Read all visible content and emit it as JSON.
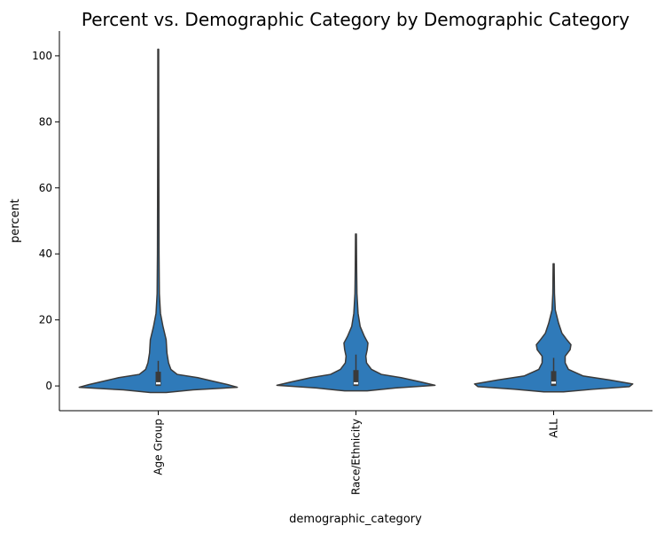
{
  "chart_data": {
    "type": "violin",
    "title": "Percent vs. Demographic Category by Demographic Category",
    "xlabel": "demographic_category",
    "ylabel": "percent",
    "ylim": [
      -7.5,
      107.5
    ],
    "yticks": [
      0,
      20,
      40,
      60,
      80,
      100
    ],
    "categories": [
      "Age Group",
      "Race/Ethnicity",
      "ALL"
    ],
    "color": "#2f7ab9",
    "edge_color": "#3a3a3a",
    "grid": false,
    "violins": [
      {
        "category": "Age Group",
        "min": -2.0,
        "max": 102.0,
        "q1": 0.0,
        "median": 0.8,
        "q3": 4.3,
        "whisker_low": 0.0,
        "whisker_high": 7.6,
        "density": [
          [
            -2.0,
            0.05
          ],
          [
            -1.2,
            0.22
          ],
          [
            -0.4,
            0.5
          ],
          [
            0.4,
            0.44
          ],
          [
            1.5,
            0.34
          ],
          [
            2.5,
            0.25
          ],
          [
            3.5,
            0.12
          ],
          [
            5,
            0.08
          ],
          [
            7,
            0.065
          ],
          [
            10,
            0.055
          ],
          [
            14,
            0.05
          ],
          [
            18,
            0.03
          ],
          [
            22,
            0.014
          ],
          [
            28,
            0.007
          ],
          [
            40,
            0.005
          ],
          [
            60,
            0.004
          ],
          [
            80,
            0.003
          ],
          [
            102,
            0.0025
          ]
        ]
      },
      {
        "category": "Race/Ethnicity",
        "min": -1.5,
        "max": 46.0,
        "q1": 0.0,
        "median": 0.8,
        "q3": 4.8,
        "whisker_low": 0.0,
        "whisker_high": 9.5,
        "density": [
          [
            -1.5,
            0.08
          ],
          [
            -0.6,
            0.28
          ],
          [
            0.2,
            0.56
          ],
          [
            1.2,
            0.46
          ],
          [
            2.5,
            0.32
          ],
          [
            3.5,
            0.18
          ],
          [
            5,
            0.11
          ],
          [
            7,
            0.075
          ],
          [
            9,
            0.07
          ],
          [
            11,
            0.08
          ],
          [
            13,
            0.085
          ],
          [
            15,
            0.06
          ],
          [
            18,
            0.03
          ],
          [
            22,
            0.015
          ],
          [
            28,
            0.007
          ],
          [
            35,
            0.005
          ],
          [
            46,
            0.003
          ]
        ]
      },
      {
        "category": "ALL",
        "min": -1.8,
        "max": 37.0,
        "q1": 0.0,
        "median": 1.0,
        "q3": 4.5,
        "whisker_low": 0.0,
        "whisker_high": 8.5,
        "density": [
          [
            -1.8,
            0.06
          ],
          [
            -1.0,
            0.24
          ],
          [
            -0.2,
            0.46
          ],
          [
            0.6,
            0.48
          ],
          [
            1.8,
            0.34
          ],
          [
            3,
            0.18
          ],
          [
            5,
            0.09
          ],
          [
            7,
            0.07
          ],
          [
            9,
            0.07
          ],
          [
            11,
            0.1
          ],
          [
            12.5,
            0.105
          ],
          [
            14,
            0.08
          ],
          [
            16,
            0.05
          ],
          [
            19,
            0.03
          ],
          [
            23,
            0.01
          ],
          [
            28,
            0.005
          ],
          [
            37,
            0.003
          ]
        ]
      }
    ]
  }
}
